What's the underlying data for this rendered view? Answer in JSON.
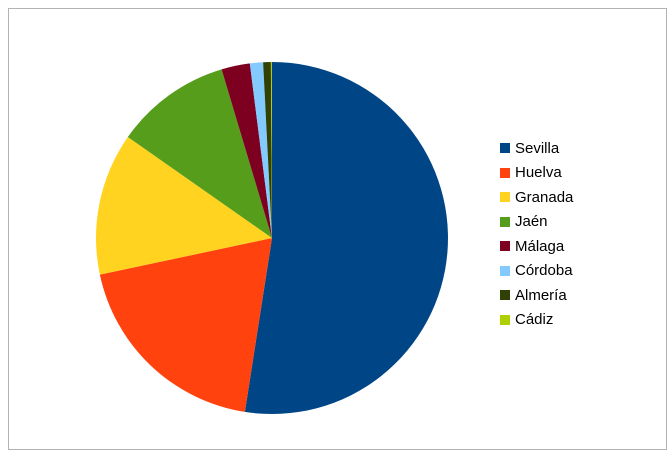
{
  "chart_data": {
    "type": "pie",
    "title": "",
    "legend_position": "right",
    "categories": [
      "Sevilla",
      "Huelva",
      "Granada",
      "Jaén",
      "Málaga",
      "Córdoba",
      "Almería",
      "Cádiz"
    ],
    "values": [
      52.2,
      19.1,
      13.0,
      10.6,
      2.6,
      1.2,
      0.7,
      0.1
    ],
    "colors": [
      "#004586",
      "#ff420e",
      "#ffd320",
      "#579d1c",
      "#7e0021",
      "#83caff",
      "#314004",
      "#aecf00"
    ],
    "start_angle_deg": 0,
    "direction": "clockwise"
  }
}
